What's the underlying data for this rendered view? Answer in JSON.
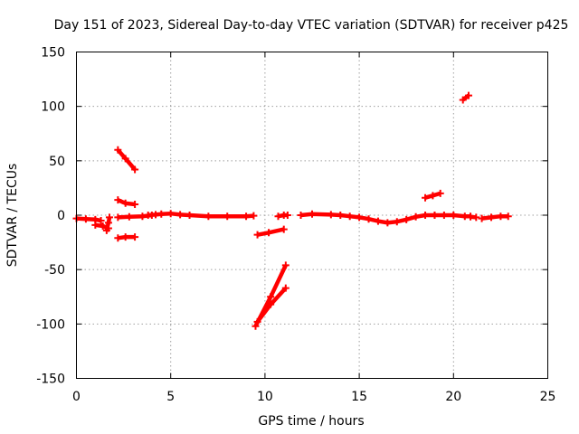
{
  "chart_data": {
    "type": "scatter",
    "title": "Day 151 of 2023, Sidereal Day-to-day VTEC variation (SDTVAR) for receiver p425",
    "xlabel": "GPS time / hours",
    "ylabel": "SDTVAR / TECUs",
    "xlim": [
      0,
      25
    ],
    "ylim": [
      -150,
      150
    ],
    "xticks": [
      "0",
      "5",
      "10",
      "15",
      "20",
      "25"
    ],
    "yticks": [
      "-150",
      "-100",
      "-50",
      "0",
      "50",
      "100",
      "150"
    ],
    "grid": true,
    "series_color": "#ff0000",
    "series": [
      {
        "name": "arc-1",
        "points": [
          [
            0.0,
            -3
          ],
          [
            0.5,
            -3.5
          ],
          [
            1.0,
            -4
          ],
          [
            1.3,
            -5
          ]
        ]
      },
      {
        "name": "arc-2",
        "points": [
          [
            1.0,
            -9
          ],
          [
            1.4,
            -10
          ],
          [
            1.7,
            -12
          ]
        ]
      },
      {
        "name": "arc-3",
        "points": [
          [
            1.6,
            -14
          ],
          [
            1.7,
            -7
          ],
          [
            1.75,
            -2
          ]
        ]
      },
      {
        "name": "arc-4",
        "points": [
          [
            2.2,
            60
          ],
          [
            2.6,
            52
          ],
          [
            3.1,
            42
          ]
        ]
      },
      {
        "name": "arc-5",
        "points": [
          [
            2.2,
            14
          ],
          [
            2.6,
            11
          ],
          [
            3.1,
            10
          ]
        ]
      },
      {
        "name": "arc-6",
        "points": [
          [
            2.2,
            -2
          ],
          [
            2.8,
            -1.5
          ],
          [
            3.5,
            -1
          ],
          [
            4.0,
            0
          ]
        ]
      },
      {
        "name": "arc-7",
        "points": [
          [
            2.2,
            -21
          ],
          [
            2.6,
            -20
          ],
          [
            3.1,
            -20
          ]
        ]
      },
      {
        "name": "arc-8",
        "points": [
          [
            3.8,
            0
          ],
          [
            4.2,
            0.5
          ],
          [
            4.5,
            1
          ],
          [
            5.0,
            1.5
          ],
          [
            5.5,
            0.5
          ],
          [
            6.0,
            0
          ],
          [
            7.0,
            -1
          ],
          [
            8.0,
            -1
          ],
          [
            9.0,
            -1
          ],
          [
            9.4,
            -0.5
          ]
        ]
      },
      {
        "name": "arc-9",
        "points": [
          [
            9.6,
            -18
          ],
          [
            10.2,
            -16
          ],
          [
            11.0,
            -13
          ]
        ]
      },
      {
        "name": "arc-10",
        "points": [
          [
            9.5,
            -102
          ],
          [
            10.3,
            -75
          ],
          [
            11.1,
            -46
          ]
        ]
      },
      {
        "name": "arc-11",
        "points": [
          [
            9.6,
            -98
          ],
          [
            10.3,
            -82
          ],
          [
            11.1,
            -67
          ]
        ]
      },
      {
        "name": "arc-12",
        "points": [
          [
            10.7,
            -1
          ],
          [
            11.0,
            0
          ],
          [
            11.2,
            0
          ]
        ]
      },
      {
        "name": "arc-13",
        "points": [
          [
            11.9,
            0
          ],
          [
            12.5,
            1
          ],
          [
            13.5,
            0.5
          ],
          [
            14.0,
            0
          ],
          [
            14.5,
            -1
          ],
          [
            15.0,
            -2
          ],
          [
            15.5,
            -3.5
          ],
          [
            16.0,
            -5.5
          ],
          [
            16.5,
            -7
          ],
          [
            17.0,
            -6
          ],
          [
            17.5,
            -4
          ],
          [
            18.0,
            -1.5
          ],
          [
            18.5,
            0
          ],
          [
            19.0,
            0
          ]
        ]
      },
      {
        "name": "arc-14",
        "points": [
          [
            18.5,
            16
          ],
          [
            18.9,
            18
          ],
          [
            19.3,
            20
          ]
        ]
      },
      {
        "name": "arc-15",
        "points": [
          [
            19.0,
            0
          ],
          [
            19.5,
            0
          ],
          [
            20.0,
            0
          ],
          [
            20.6,
            -1
          ],
          [
            20.9,
            -1
          ]
        ]
      },
      {
        "name": "arc-16",
        "points": [
          [
            20.5,
            106
          ],
          [
            20.8,
            110
          ]
        ]
      },
      {
        "name": "arc-17",
        "points": [
          [
            20.9,
            -1.5
          ],
          [
            21.2,
            -2
          ]
        ]
      },
      {
        "name": "arc-18",
        "points": [
          [
            21.5,
            -3
          ],
          [
            22.0,
            -2
          ],
          [
            22.5,
            -1
          ],
          [
            22.9,
            -1
          ]
        ]
      }
    ]
  }
}
